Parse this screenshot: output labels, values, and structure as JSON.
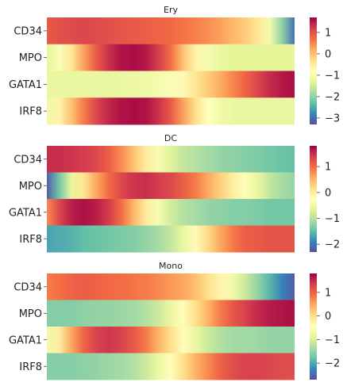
{
  "colormap": [
    "#5e4fa2",
    "#3288bd",
    "#66c2a5",
    "#abdda4",
    "#e6f598",
    "#ffffbf",
    "#fee08b",
    "#fdae61",
    "#f46d43",
    "#d53e4f",
    "#9e0142"
  ],
  "chart_data": [
    {
      "type": "heatmap",
      "title": "Ery",
      "rows": [
        "CD34",
        "MPO",
        "GATA1",
        "IRF8"
      ],
      "x": [
        0,
        0.05,
        0.1,
        0.15,
        0.2,
        0.25,
        0.3,
        0.35,
        0.4,
        0.45,
        0.5,
        0.55,
        0.6,
        0.65,
        0.7,
        0.75,
        0.8,
        0.85,
        0.9,
        0.95,
        1
      ],
      "values": [
        [
          0.9,
          1.0,
          1.05,
          1.1,
          1.05,
          1.0,
          0.95,
          0.9,
          0.85,
          0.8,
          0.75,
          0.65,
          0.55,
          0.45,
          0.3,
          0.1,
          -0.1,
          -0.4,
          -1.0,
          -2.0,
          -3.0
        ],
        [
          -1.3,
          -0.9,
          -0.4,
          0.3,
          0.9,
          1.3,
          1.55,
          1.6,
          1.5,
          1.2,
          0.7,
          0.0,
          -0.6,
          -1.0,
          -1.2,
          -1.3,
          -1.3,
          -1.3,
          -1.3,
          -1.3,
          -1.3
        ],
        [
          -1.2,
          -1.2,
          -1.2,
          -1.2,
          -1.2,
          -1.2,
          -1.2,
          -1.15,
          -1.1,
          -1.0,
          -0.9,
          -0.7,
          -0.4,
          -0.1,
          0.2,
          0.5,
          0.8,
          1.1,
          1.35,
          1.5,
          1.6
        ],
        [
          -1.1,
          -0.6,
          0.0,
          0.6,
          1.1,
          1.4,
          1.55,
          1.6,
          1.55,
          1.3,
          0.9,
          0.3,
          -0.3,
          -0.8,
          -1.1,
          -1.2,
          -1.2,
          -1.2,
          -1.2,
          -1.2,
          -1.2
        ]
      ],
      "vmin": -3.3,
      "vmax": 1.7,
      "colorbar_ticks": [
        1,
        0,
        -1,
        -2,
        -3
      ],
      "grid": false
    },
    {
      "type": "heatmap",
      "title": "DC",
      "rows": [
        "CD34",
        "MPO",
        "GATA1",
        "IRF8"
      ],
      "x": [
        0,
        0.05,
        0.1,
        0.15,
        0.2,
        0.25,
        0.3,
        0.35,
        0.4,
        0.45,
        0.5,
        0.55,
        0.6,
        0.65,
        0.7,
        0.75,
        0.8,
        0.85,
        0.9,
        0.95,
        1
      ],
      "values": [
        [
          1.5,
          1.5,
          1.45,
          1.4,
          1.3,
          1.1,
          0.8,
          0.4,
          0.0,
          -0.4,
          -0.7,
          -0.9,
          -1.0,
          -1.1,
          -1.2,
          -1.25,
          -1.3,
          -1.35,
          -1.4,
          -1.45,
          -1.5
        ],
        [
          -2.2,
          -1.4,
          -0.6,
          0.1,
          0.6,
          1.0,
          1.3,
          1.45,
          1.5,
          1.4,
          1.3,
          1.1,
          0.9,
          0.6,
          0.3,
          0.0,
          -0.3,
          -0.6,
          -0.9,
          -1.1,
          -1.2
        ],
        [
          0.8,
          1.3,
          1.6,
          1.7,
          1.6,
          1.4,
          1.0,
          0.5,
          0.0,
          -0.4,
          -0.8,
          -1.0,
          -1.1,
          -1.2,
          -1.25,
          -1.3,
          -1.3,
          -1.35,
          -1.4,
          -1.4,
          -1.4
        ],
        [
          -1.7,
          -1.65,
          -1.6,
          -1.5,
          -1.45,
          -1.4,
          -1.35,
          -1.3,
          -1.2,
          -1.1,
          -0.9,
          -0.6,
          -0.2,
          0.2,
          0.6,
          0.9,
          1.1,
          1.15,
          1.2,
          1.2,
          1.2
        ]
      ],
      "vmin": -2.3,
      "vmax": 1.8,
      "colorbar_ticks": [
        1,
        0,
        -1,
        -2
      ],
      "grid": false
    },
    {
      "type": "heatmap",
      "title": "Mono",
      "rows": [
        "CD34",
        "MPO",
        "GATA1",
        "IRF8"
      ],
      "x": [
        0,
        0.05,
        0.1,
        0.15,
        0.2,
        0.25,
        0.3,
        0.35,
        0.4,
        0.45,
        0.5,
        0.55,
        0.6,
        0.65,
        0.7,
        0.75,
        0.8,
        0.85,
        0.9,
        0.95,
        1
      ],
      "values": [
        [
          0.8,
          0.9,
          1.0,
          1.05,
          1.0,
          0.95,
          0.9,
          0.85,
          0.8,
          0.7,
          0.6,
          0.5,
          0.3,
          0.0,
          -0.3,
          -0.7,
          -1.1,
          -1.5,
          -1.9,
          -2.3,
          -2.6
        ],
        [
          -1.6,
          -1.6,
          -1.6,
          -1.55,
          -1.5,
          -1.5,
          -1.45,
          -1.4,
          -1.3,
          -1.1,
          -0.8,
          -0.4,
          0.0,
          0.4,
          0.8,
          1.1,
          1.3,
          1.5,
          1.6,
          1.65,
          1.7
        ],
        [
          -0.7,
          -0.2,
          0.5,
          1.0,
          1.3,
          1.4,
          1.3,
          1.1,
          0.8,
          0.4,
          0.0,
          -0.4,
          -0.8,
          -1.1,
          -1.3,
          -1.4,
          -1.4,
          -1.45,
          -1.5,
          -1.5,
          -1.5
        ],
        [
          -1.6,
          -1.6,
          -1.6,
          -1.55,
          -1.5,
          -1.45,
          -1.4,
          -1.3,
          -1.1,
          -0.8,
          -0.4,
          0.0,
          0.4,
          0.7,
          1.0,
          1.2,
          1.3,
          1.3,
          1.25,
          1.2,
          1.2
        ]
      ],
      "vmin": -2.7,
      "vmax": 1.8,
      "colorbar_ticks": [
        1,
        0,
        -1,
        -2
      ],
      "grid": false
    }
  ]
}
